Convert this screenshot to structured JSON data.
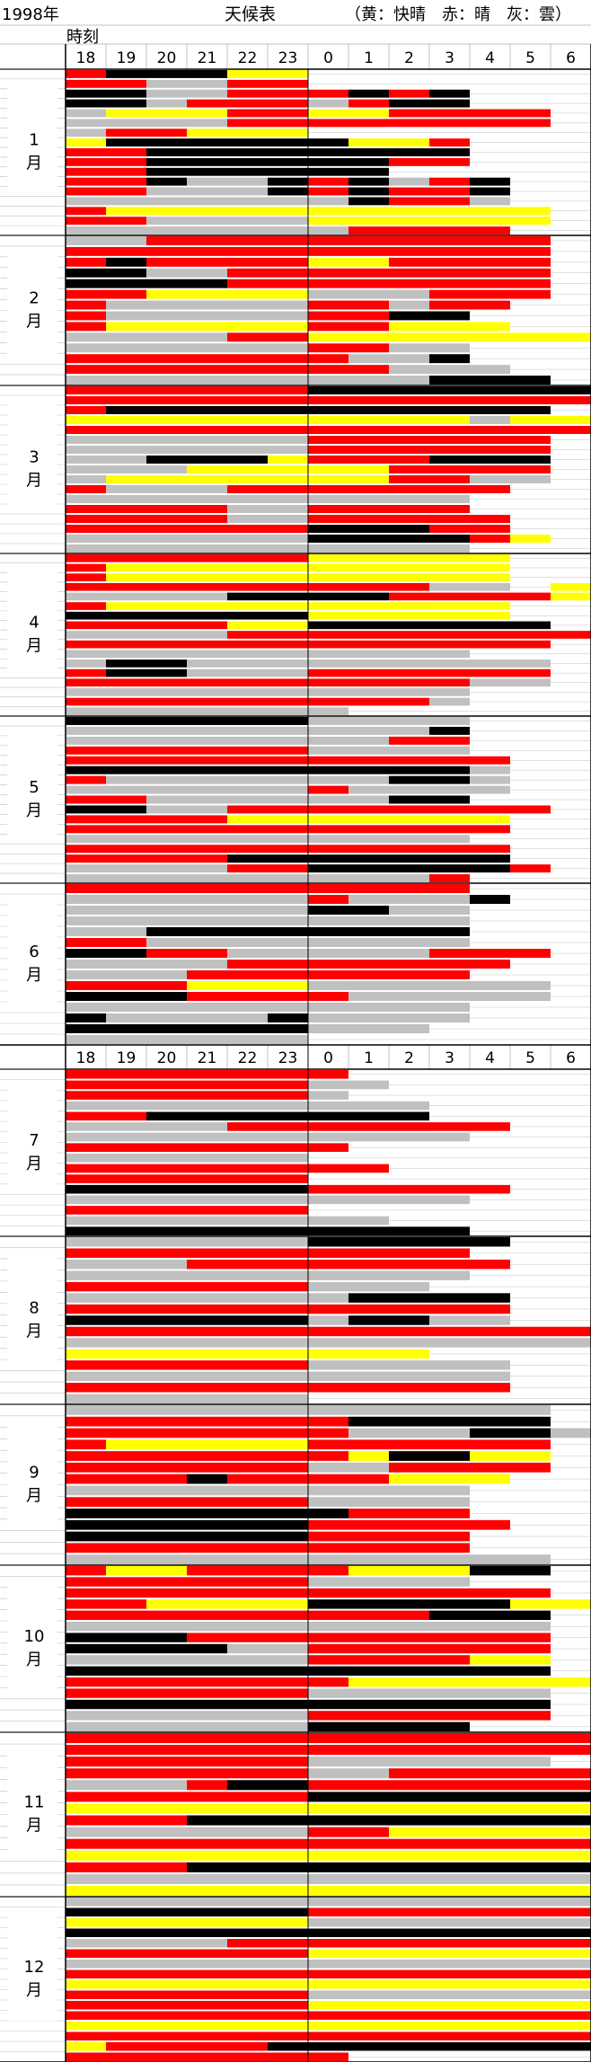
{
  "header": {
    "year_label": "1998年",
    "title": "天候表",
    "legend_text": "（黄：快晴　赤：晴　灰：雲）",
    "time_label": "時刻"
  },
  "colors": {
    "yellow": "#ffff00",
    "red": "#ff0000",
    "gray": "#c0c0c0",
    "black": "#000000",
    "white": "#ffffff",
    "grid": "#c0c0c0"
  },
  "chart_data": {
    "type": "heatmap",
    "title": "天候表",
    "year": "1998年",
    "x_tick_labels": [
      "18",
      "19",
      "20",
      "21",
      "22",
      "23",
      "0",
      "1",
      "2",
      "3",
      "4",
      "5",
      "6"
    ],
    "row_labels": [
      "1月",
      "2月",
      "3月",
      "4月",
      "5月",
      "6月",
      "7月",
      "8月",
      "9月",
      "10月",
      "11月",
      "12月"
    ],
    "legend": [
      {
        "code": "Y",
        "label": "快晴",
        "color": "#ffff00"
      },
      {
        "code": "R",
        "label": "晴",
        "color": "#ff0000"
      },
      {
        "code": "G",
        "label": "雲",
        "color": "#c0c0c0"
      }
    ],
    "cell_codes": "Y=快晴, R=晴, G=雲, K=black, W=white, .=blank; one string per night, one character per hour 18..6",
    "months": [
      {
        "month": "1月",
        "days": [
          "RKKKYY.......",
          "RRGGRR.......",
          "KKGGRRRKRK...",
          "KKGRRRGRKK...",
          "GYYYRRYYRRRR.",
          "GGGGRRRRRRRR.",
          "GRRYYY.......",
          "YKKKKKKYYR...",
          "RRKKKKKKKK...",
          "RRKKKKKKRR...",
          "RRKKKKKK.....",
          "RRKGGKRKGRK..",
          "RRGGGKRKRRK..",
          "GGGGGGGKRRG..",
          "RYYYYYYYYYYY.",
          "RRGGGGYYYYYY.",
          "GGGGGGGRRRR.."
        ]
      },
      {
        "month": "2月",
        "days": [
          "GGRRRRRRRRRR.",
          "RRRRRRRRRRRR.",
          "RKRRRRYYRRRR.",
          "KKGGRRRRRRRR.",
          "KKKKRRRRRRRR.",
          "RRYYYYGGGRRR.",
          "RGGGGGRRGRR..",
          "RGGGGGRRKK...",
          "RYYYYYRRYYY..",
          "GGGGRRYYYYYYY",
          "GGGGGGRRGG...",
          "RRRRRRRGGK...",
          "RRRRRRRRGGG..",
          "GGGGGGGGGKKK."
        ]
      },
      {
        "month": "3月",
        "days": [
          "RRRRRRKKKKKKK",
          "RRRRRRRRRRRRR",
          "RKKKKKKKKKKK.",
          "YYYYYYYYYYGYY",
          "RRRRRRRRRRRRR",
          "GGGGGGRRRRRR.",
          "GGGGGGRRRRRR.",
          "GGKKKYRRRKKK.",
          "GGGYYYYYRRRR.",
          "GYYYYYYYRRGG.",
          "RGGGRRRRRRR..",
          "GGGGGGGGGG...",
          "RRRRGGRRRR...",
          "RRRRGGRRRRR..",
          "RRRRRRKKKRR..",
          "GGGGGGKKKKRY.",
          "GGGGGGGGGG..."
        ]
      },
      {
        "month": "4月",
        "days": [
          "RRRRRRYYYYY..",
          "RYYYYYYYYYY..",
          "RYYYYYYYYYY..",
          "RRRRRRRRRGG.Y",
          "GGGGKKKKRRRRY",
          "RYYYYYYYYYY..",
          "KKKKKKYYYYY..",
          "RRRRYYKKKKKK.",
          "GGGGRRRRRRRRR",
          "RRRRRRRRRRRR.",
          "GGGGGGGGGG...",
          "GKKGGGGGGGGG.",
          "RKKGGGRRRRRR.",
          "RRRRRRRRRRGG.",
          "GGGGGGGGGG...",
          "RRRRRRRRRG...",
          "GGGGGGG......"
        ]
      },
      {
        "month": "5月",
        "days": [
          "KKKKKKGGGG...",
          "GGGGGGGGGK...",
          "GGGGGGGGRR...",
          "RRRRRRGGGG...",
          "RRRRRRRRRRR..",
          "KKKKKKKKKKG..",
          "RGGGGGGGKKG..",
          "GGGGGGRGGGG..",
          "RRGGGGGGKK...",
          "KKGGRRRRRRRR.",
          "RRRRYYYYYYY..",
          "RRRRRRRRRRR..",
          "GGGGGGGGGG...",
          "RRRRRRRRRRR..",
          "RRRRKKKKKKK..",
          "GGGGRRKKKKKR.",
          "GGGGGGGGGR..."
        ]
      },
      {
        "month": "6月",
        "days": [
          "RRRRRRRRRR...",
          "GGGGGGRGGGK..",
          "GGGGGGKKGG...",
          "GGGGGGGGGG...",
          "GGKKKKKKKK...",
          "RRGGGGGGGG...",
          "KKRRGGGGGRRR.",
          "GGGGRRRRRRR..",
          "GGGRRRRRRR...",
          "RRRYYYGGGGGG.",
          "KKKRRRRGGGGG.",
          "GGGGGGGGGG...",
          "KGGGGKGGGG...",
          "KKKKKKGGG....",
          "GGGGGG......."
        ]
      },
      {
        "month": "7月",
        "days": [
          "RRRRRRR......",
          "RRRRRRGG.....",
          "RRRRRRG......",
          "GGGGGGGGG....",
          "RRKKKKKKK....",
          "GGGGRRRRRRR..",
          "GGGGGGGGGG...",
          "RRRRRRR......",
          "GGGGGG.......",
          "RRRRRRRR.....",
          "RRRRRR.......",
          "KKKKKKRRRRR..",
          "GGGGGGGGGG...",
          "RRRRRR.......",
          "GGGGGGGG.....",
          "KKKKKKKKKK..."
        ]
      },
      {
        "month": "8月",
        "days": [
          "GGGGGGKKKKK..",
          "RRRRRRRRRR...",
          "GGGRRRRRRRR..",
          "GGGGGGGGGG...",
          "RRRRRRGGG....",
          "GGGGGGGKKKK..",
          "RRRRRRRRRRR..",
          "KKKKKKGKKGG..",
          "RRRRRRRRRRRRR",
          "GGGGGGGGGGGGG",
          "YYYYYYYYY....",
          "RRRRRRGGGGG..",
          "GGGGGGGGGGG..",
          "RRRRRRRRRRR..",
          "GGGGGG......."
        ]
      },
      {
        "month": "9月",
        "days": [
          "GGGGGGGGGGGG.",
          "RRRRRRRKKKKK.",
          "RRRRRRRGGGKKG",
          "RYYYYYRRRRRR.",
          "RRRRRRRYKKYY.",
          "RRRRRRGGRRRR.",
          "RRRKRRRRYYY..",
          "GGGGGGGGGG...",
          "RRRRRRGGGG...",
          "KKKKKKKRRR...",
          "KKKKKKRRRRR..",
          "KKKKKKRRRR...",
          "RRRRRRRRRR...",
          "GGGGGGGGGGGG."
        ]
      },
      {
        "month": "10月",
        "days": [
          "RYYRRRRYYYKK.",
          "RRRRRRGGGG...",
          "RRRRRRRRRRRR.",
          "RRYYYYKKKKKYY",
          "RRRRRRRRRKKK.",
          "GGGGGGGGGGGG.",
          "KKKRRRRRRRRR.",
          "KKKKGGRRRRRR.",
          "GGGGGGRRRRYY.",
          "KKKKKKKKKKKK.",
          "RRRRRRRYYYYYY",
          "RRRRRRGGGGGG.",
          "KKKKKKKKKKKK.",
          "GGGGGGRRRRRR.",
          "GGGGGGKKKK..."
        ]
      },
      {
        "month": "11月",
        "days": [
          "RRRRRRRRRRRRR",
          "RRRRRRRRRRRRR",
          "RRRRRRGGGGGG.",
          "RRRRRRGGRRRRR",
          "GGGRKKRRRRRRR",
          "RRRRRRKKKKKKK",
          "YYYYYYYYYYYYY",
          "RRRKKKKKKKKKK",
          "GGGGGGRRYYYYY",
          "RRRRRRRRRRRRR",
          "YYYYYYYYYYYYY",
          "RRRKKKKKKKKKK",
          "GGGGGGGGGGGGG",
          "YYYYYYYYYYYYY"
        ]
      },
      {
        "month": "12月",
        "days": [
          "GGGGGGGGGGGGG",
          "KKKKKKRRRRRRR",
          "YYYYYYGGGGGGG",
          "KKKKKKKKKKKKK",
          "GGGGRRRRRRRRR",
          "RRRRRRYYYYYYY",
          "GGGGGGGGGGGGG",
          "RRRRRRRRRRRRR",
          "YYYYYYYYYYYYY",
          "RRRRRRGGGGGGG",
          "RRRRRRYYYYYYY",
          "RRRRRRRRRRRRR",
          "YYYYYYYYYYYYY",
          "RRRRRRRRRRRRR",
          "YRRRRKKKKKKKK",
          "RRRRRRR......"
        ]
      }
    ]
  }
}
